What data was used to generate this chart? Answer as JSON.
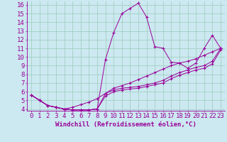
{
  "xlabel": "Windchill (Refroidissement éolien,°C)",
  "background_color": "#cce8f0",
  "line_color": "#990099",
  "x_min": 0,
  "x_max": 23,
  "y_min": 4,
  "y_max": 16,
  "series1_x": [
    0,
    1,
    2,
    3,
    4,
    5,
    6,
    7,
    8,
    9,
    10,
    11,
    12,
    13,
    14,
    15,
    16,
    17,
    18,
    19,
    20,
    21,
    22,
    23
  ],
  "series1_y": [
    5.6,
    5.0,
    4.4,
    4.2,
    4.0,
    3.9,
    3.9,
    3.9,
    4.0,
    9.7,
    12.8,
    15.0,
    15.6,
    16.2,
    14.6,
    11.2,
    11.0,
    9.4,
    9.3,
    8.7,
    9.3,
    11.0,
    12.5,
    11.0
  ],
  "series2_x": [
    0,
    1,
    2,
    3,
    4,
    5,
    6,
    7,
    8,
    9,
    10,
    11,
    12,
    13,
    14,
    15,
    16,
    17,
    18,
    19,
    20,
    21,
    22,
    23
  ],
  "series2_y": [
    5.6,
    5.0,
    4.4,
    4.2,
    4.0,
    3.9,
    3.9,
    3.9,
    4.0,
    5.5,
    6.0,
    6.2,
    6.3,
    6.4,
    6.6,
    6.8,
    7.0,
    7.5,
    7.9,
    8.2,
    8.5,
    8.7,
    9.2,
    10.8
  ],
  "series3_x": [
    0,
    1,
    2,
    3,
    4,
    5,
    6,
    7,
    8,
    9,
    10,
    11,
    12,
    13,
    14,
    15,
    16,
    17,
    18,
    19,
    20,
    21,
    22,
    23
  ],
  "series3_y": [
    5.6,
    5.0,
    4.4,
    4.2,
    4.0,
    3.9,
    3.9,
    3.9,
    4.0,
    5.8,
    6.2,
    6.4,
    6.5,
    6.6,
    6.8,
    7.0,
    7.3,
    7.8,
    8.2,
    8.5,
    8.8,
    9.0,
    9.5,
    11.0
  ],
  "series4_x": [
    0,
    1,
    2,
    3,
    4,
    5,
    6,
    7,
    8,
    9,
    10,
    11,
    12,
    13,
    14,
    15,
    16,
    17,
    18,
    19,
    20,
    21,
    22,
    23
  ],
  "series4_y": [
    5.6,
    5.0,
    4.4,
    4.2,
    4.0,
    4.2,
    4.5,
    4.8,
    5.2,
    5.8,
    6.4,
    6.7,
    7.0,
    7.4,
    7.8,
    8.2,
    8.6,
    9.0,
    9.3,
    9.5,
    9.8,
    10.2,
    10.6,
    11.0
  ],
  "grid_color": "#99ccbb",
  "tick_fontsize": 6.5,
  "label_fontsize": 6.5
}
